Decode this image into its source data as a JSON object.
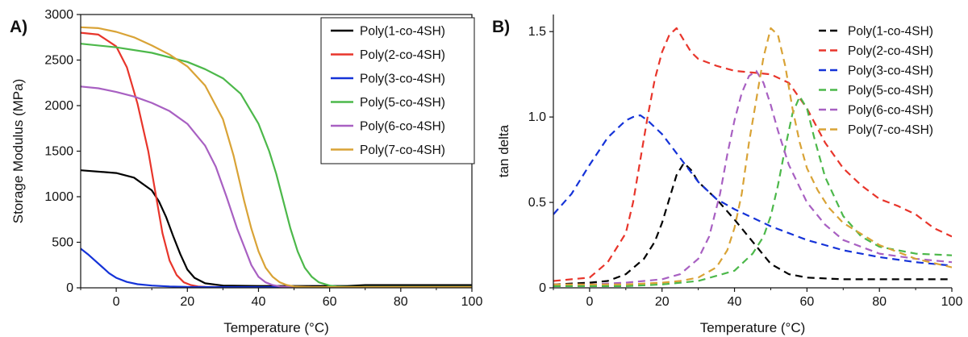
{
  "chart_data": [
    {
      "panel_label": "A)",
      "type": "line",
      "xlabel": "Temperature (°C)",
      "ylabel": "Storage Modulus (MPa)",
      "xlim": [
        -10,
        100
      ],
      "ylim": [
        0,
        3000
      ],
      "xticks": [
        0,
        20,
        40,
        60,
        80,
        100
      ],
      "yticks": [
        0,
        500,
        1000,
        1500,
        2000,
        2500,
        3000
      ],
      "legend_position": "top-right",
      "line_style": "solid",
      "series": [
        {
          "name": "Poly(1-co-4SH)",
          "color": "#000000",
          "x": [
            -10,
            0,
            5,
            10,
            12,
            14,
            16,
            18,
            20,
            22,
            25,
            30,
            40,
            50,
            60,
            65,
            70,
            80,
            90,
            100
          ],
          "y": [
            1290,
            1260,
            1210,
            1070,
            950,
            780,
            570,
            370,
            200,
            110,
            50,
            25,
            20,
            20,
            20,
            20,
            30,
            30,
            30,
            30
          ]
        },
        {
          "name": "Poly(2-co-4SH)",
          "color": "#e8352b",
          "x": [
            -10,
            -5,
            0,
            3,
            6,
            9,
            11,
            13,
            15,
            17,
            19,
            21,
            23,
            25,
            30,
            40,
            60,
            80,
            100
          ],
          "y": [
            2800,
            2780,
            2650,
            2420,
            2020,
            1500,
            1050,
            600,
            300,
            140,
            60,
            30,
            15,
            10,
            8,
            8,
            8,
            8,
            8
          ]
        },
        {
          "name": "Poly(3-co-4SH)",
          "color": "#1533d8",
          "x": [
            -10,
            -8,
            -6,
            -4,
            -2,
            0,
            3,
            6,
            10,
            15,
            20,
            30,
            50,
            100
          ],
          "y": [
            430,
            370,
            300,
            230,
            160,
            110,
            65,
            40,
            25,
            15,
            10,
            8,
            8,
            8
          ]
        },
        {
          "name": "Poly(5-co-4SH)",
          "color": "#4cb84a",
          "x": [
            -10,
            0,
            10,
            20,
            25,
            30,
            35,
            40,
            43,
            45,
            47,
            49,
            51,
            53,
            55,
            57,
            60,
            62,
            65,
            70,
            80,
            100
          ],
          "y": [
            2680,
            2640,
            2580,
            2480,
            2400,
            2300,
            2130,
            1800,
            1500,
            1250,
            950,
            650,
            400,
            220,
            120,
            60,
            25,
            15,
            10,
            10,
            10,
            10
          ]
        },
        {
          "name": "Poly(6-co-4SH)",
          "color": "#a860c2",
          "x": [
            -10,
            -5,
            0,
            5,
            10,
            15,
            20,
            25,
            28,
            31,
            34,
            36,
            38,
            40,
            42,
            44,
            46,
            50,
            60,
            100
          ],
          "y": [
            2210,
            2190,
            2150,
            2100,
            2030,
            1940,
            1800,
            1560,
            1330,
            1000,
            650,
            450,
            250,
            120,
            60,
            30,
            15,
            8,
            8,
            8
          ]
        },
        {
          "name": "Poly(7-co-4SH)",
          "color": "#d9a336",
          "x": [
            -10,
            -5,
            0,
            5,
            10,
            15,
            20,
            25,
            30,
            33,
            36,
            38,
            40,
            42,
            44,
            46,
            48,
            50,
            55,
            60,
            100
          ],
          "y": [
            2860,
            2850,
            2810,
            2750,
            2660,
            2560,
            2430,
            2220,
            1850,
            1450,
            950,
            650,
            400,
            220,
            120,
            60,
            30,
            15,
            8,
            8,
            8
          ]
        }
      ]
    },
    {
      "panel_label": "B)",
      "type": "line",
      "xlabel": "Temperature (°C)",
      "ylabel": "tan delta",
      "xlim": [
        -10,
        100
      ],
      "ylim": [
        0,
        1.6
      ],
      "xticks": [
        0,
        20,
        40,
        60,
        80,
        100
      ],
      "yticks": [
        0,
        0.5,
        1.0,
        1.5
      ],
      "ytick_labels": [
        "0",
        "0.5",
        "1.0",
        "1.5"
      ],
      "legend_position": "top-right",
      "line_style": "dashed",
      "series": [
        {
          "name": "Poly(1-co-4SH)",
          "color": "#000000",
          "x": [
            -10,
            0,
            5,
            10,
            15,
            18,
            20,
            22,
            24,
            26,
            28,
            30,
            35,
            40,
            45,
            50,
            55,
            60,
            70,
            80,
            90,
            100
          ],
          "y": [
            0.02,
            0.03,
            0.04,
            0.08,
            0.17,
            0.27,
            0.38,
            0.52,
            0.66,
            0.73,
            0.69,
            0.62,
            0.52,
            0.4,
            0.27,
            0.14,
            0.08,
            0.06,
            0.05,
            0.05,
            0.05,
            0.05
          ]
        },
        {
          "name": "Poly(2-co-4SH)",
          "color": "#e8352b",
          "x": [
            -10,
            0,
            5,
            10,
            12,
            14,
            16,
            18,
            20,
            22,
            24,
            26,
            28,
            30,
            35,
            40,
            45,
            50,
            55,
            60,
            65,
            70,
            75,
            80,
            85,
            90,
            95,
            100
          ],
          "y": [
            0.04,
            0.06,
            0.15,
            0.32,
            0.5,
            0.75,
            1.0,
            1.22,
            1.38,
            1.48,
            1.52,
            1.45,
            1.38,
            1.34,
            1.3,
            1.27,
            1.26,
            1.25,
            1.2,
            1.05,
            0.85,
            0.7,
            0.6,
            0.52,
            0.48,
            0.43,
            0.35,
            0.3
          ]
        },
        {
          "name": "Poly(3-co-4SH)",
          "color": "#1533d8",
          "x": [
            -10,
            -5,
            0,
            5,
            10,
            12,
            14,
            16,
            20,
            25,
            30,
            35,
            40,
            45,
            50,
            55,
            60,
            65,
            70,
            80,
            90,
            100
          ],
          "y": [
            0.43,
            0.55,
            0.72,
            0.88,
            0.98,
            1.0,
            1.01,
            0.98,
            0.9,
            0.76,
            0.62,
            0.52,
            0.46,
            0.41,
            0.36,
            0.32,
            0.28,
            0.25,
            0.22,
            0.18,
            0.15,
            0.13
          ]
        },
        {
          "name": "Poly(5-co-4SH)",
          "color": "#4cb84a",
          "x": [
            -10,
            0,
            10,
            20,
            30,
            40,
            45,
            48,
            50,
            52,
            54,
            56,
            58,
            60,
            62,
            65,
            70,
            75,
            80,
            90,
            100
          ],
          "y": [
            0.01,
            0.01,
            0.01,
            0.02,
            0.04,
            0.1,
            0.2,
            0.3,
            0.42,
            0.6,
            0.82,
            1.02,
            1.12,
            1.05,
            0.88,
            0.65,
            0.42,
            0.3,
            0.24,
            0.2,
            0.19
          ]
        },
        {
          "name": "Poly(6-co-4SH)",
          "color": "#a860c2",
          "x": [
            -10,
            0,
            10,
            20,
            25,
            30,
            33,
            36,
            38,
            40,
            42,
            44,
            46,
            48,
            50,
            52,
            55,
            60,
            65,
            70,
            80,
            90,
            100
          ],
          "y": [
            0.02,
            0.02,
            0.03,
            0.05,
            0.08,
            0.17,
            0.3,
            0.55,
            0.78,
            0.98,
            1.14,
            1.24,
            1.27,
            1.2,
            1.07,
            0.92,
            0.72,
            0.5,
            0.37,
            0.28,
            0.2,
            0.17,
            0.15
          ]
        },
        {
          "name": "Poly(7-co-4SH)",
          "color": "#d9a336",
          "x": [
            -10,
            0,
            10,
            20,
            25,
            30,
            35,
            38,
            40,
            42,
            44,
            46,
            48,
            50,
            52,
            54,
            56,
            58,
            60,
            63,
            66,
            70,
            80,
            90,
            100
          ],
          "y": [
            0.02,
            0.02,
            0.02,
            0.03,
            0.04,
            0.06,
            0.12,
            0.22,
            0.35,
            0.55,
            0.85,
            1.1,
            1.35,
            1.52,
            1.48,
            1.3,
            1.05,
            0.85,
            0.7,
            0.57,
            0.47,
            0.38,
            0.25,
            0.17,
            0.12
          ]
        }
      ]
    }
  ]
}
